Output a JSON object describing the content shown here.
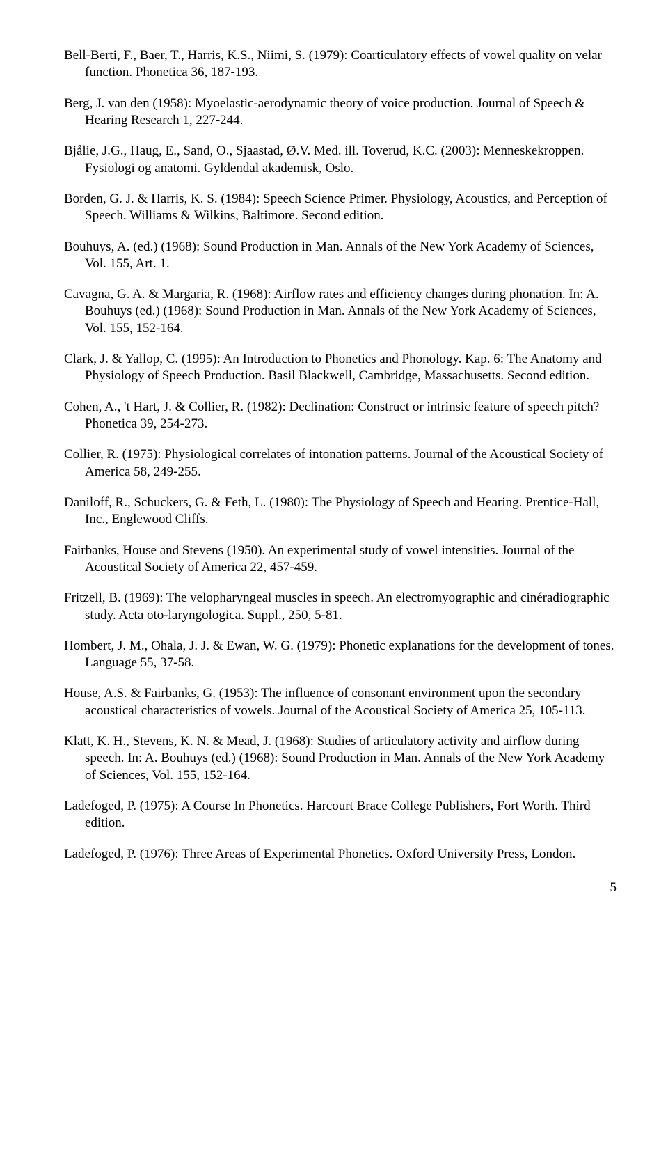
{
  "references": [
    {
      "text": "Bell-Berti, F., Baer, T., Harris, K.S., Niimi, S. (1979): Coarticulatory effects of vowel quality on velar function. Phonetica 36, 187-193."
    },
    {
      "text": "Berg, J. van den (1958): Myoelastic-aerodynamic theory of voice production. Journal of Speech & Hearing Research 1, 227-244."
    },
    {
      "text": "Bjålie, J.G., Haug, E., Sand, O., Sjaastad, Ø.V. Med. ill. Toverud, K.C. (2003): Menneskekroppen. Fysiologi og anatomi. Gyldendal akademisk, Oslo."
    },
    {
      "text": "Borden, G. J. & Harris, K. S. (1984): Speech Science Primer. Physiology, Acoustics, and Perception of Speech. Williams & Wilkins, Baltimore. Second edition."
    },
    {
      "text": "Bouhuys, A. (ed.) (1968): Sound Production in Man. Annals of the New York Academy of Sciences, Vol. 155, Art. 1."
    },
    {
      "text": "Cavagna, G. A. & Margaria, R. (1968): Airflow rates and efficiency changes during phonation. In: A. Bouhuys (ed.) (1968): Sound Production in Man. Annals of the New York Academy of Sciences, Vol. 155, 152-164."
    },
    {
      "text": "Clark, J. & Yallop, C. (1995): An Introduction to Phonetics and Phonology. Kap. 6: The Anatomy and Physiology of Speech Production. Basil Blackwell, Cambridge, Massachusetts. Second edition."
    },
    {
      "text": "Cohen, A., 't Hart, J. & Collier, R. (1982): Declination: Construct or intrinsic feature of speech pitch? Phonetica 39, 254-273."
    },
    {
      "text": "Collier, R. (1975): Physiological correlates of intonation patterns. Journal of the Acoustical Society of America 58, 249-255."
    },
    {
      "text": "Daniloff, R., Schuckers, G. & Feth, L. (1980): The Physiology of Speech and Hearing. Prentice-Hall, Inc., Englewood Cliffs."
    },
    {
      "text": "Fairbanks, House and Stevens (1950). An experimental study of vowel intensities. Journal of the Acoustical Society of America 22, 457-459."
    },
    {
      "text": "Fritzell, B. (1969): The velopharyngeal muscles in speech. An electromyographic and cinéradiographic study. Acta oto-laryngologica. Suppl., 250, 5-81."
    },
    {
      "text": "Hombert, J. M., Ohala, J. J. & Ewan, W. G. (1979): Phonetic explanations for the development of tones. Language 55, 37-58."
    },
    {
      "text": "House, A.S. & Fairbanks, G. (1953): The influence of consonant environment upon the secondary acoustical characteristics of vowels. Journal of the Acoustical Society of America 25, 105-113."
    },
    {
      "text": "Klatt, K. H., Stevens, K. N. & Mead, J. (1968): Studies of articulatory activity and airflow during speech. In: A. Bouhuys  (ed.) (1968): Sound Production in Man. Annals of the New York Academy of Sciences, Vol. 155, 152-164."
    },
    {
      "text": "Ladefoged, P. (1975): A Course In Phonetics. Harcourt Brace College Publishers, Fort Worth. Third edition."
    },
    {
      "text": "Ladefoged, P. (1976): Three Areas of Experimental Phonetics. Oxford University Press, London."
    }
  ],
  "page_number": "5"
}
